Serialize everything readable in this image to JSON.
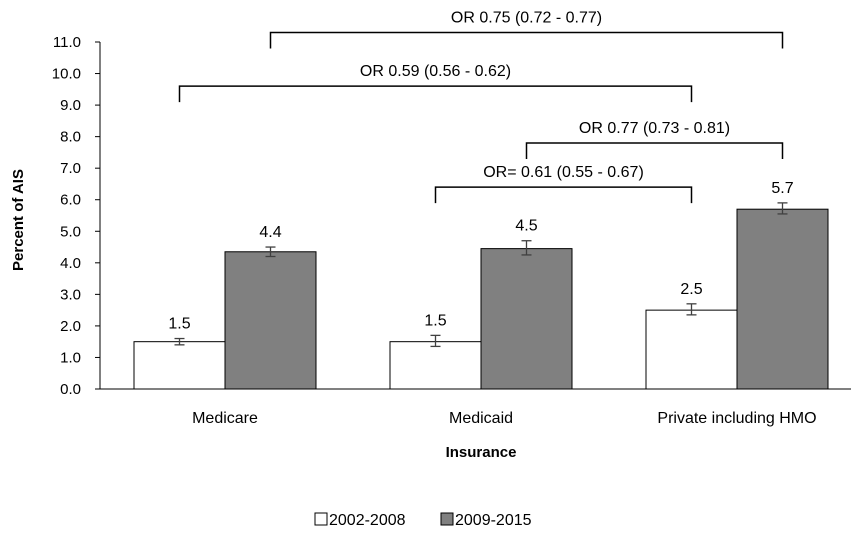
{
  "chart_data": {
    "type": "bar",
    "title": "",
    "xlabel": "Insurance",
    "ylabel": "Percent of AIS",
    "ylim": [
      0,
      11
    ],
    "ytick_step": 1,
    "ytick_labels": [
      "0.0",
      "1.0",
      "2.0",
      "3.0",
      "4.0",
      "5.0",
      "6.0",
      "7.0",
      "8.0",
      "9.0",
      "10.0",
      "11.0"
    ],
    "categories": [
      "Medicare",
      "Medicaid",
      "Private including HMO"
    ],
    "series": [
      {
        "name": "2002-2008",
        "color": "#ffffff",
        "values": [
          1.5,
          1.5,
          2.5
        ],
        "labels": [
          "1.5",
          "1.5",
          "2.5"
        ],
        "error_low": [
          1.4,
          1.35,
          2.35
        ],
        "error_high": [
          1.6,
          1.7,
          2.7
        ]
      },
      {
        "name": "2009-2015",
        "color": "#808080",
        "values": [
          4.35,
          4.45,
          5.7
        ],
        "labels": [
          "4.4",
          "4.5",
          "5.7"
        ],
        "error_low": [
          4.2,
          4.25,
          5.55
        ],
        "error_high": [
          4.5,
          4.7,
          5.9
        ]
      }
    ],
    "grid": false,
    "legend_position": "bottom",
    "comparisons": [
      {
        "text": "OR 0.75 (0.72 - 0.77)",
        "from": "2009-2015|Medicare",
        "to": "2009-2015|Private including HMO",
        "level": 11.3
      },
      {
        "text": "OR 0.59 (0.56 - 0.62)",
        "from": "2002-2008|Medicare",
        "to": "2002-2008|Private including HMO",
        "level": 9.6
      },
      {
        "text": "OR 0.77 (0.73 - 0.81)",
        "from": "2009-2015|Medicaid",
        "to": "2009-2015|Private including HMO",
        "level": 7.8
      },
      {
        "text": "OR= 0.61 (0.55 - 0.67)",
        "from": "2002-2008|Medicaid",
        "to": "2002-2008|Private including HMO",
        "level": 6.4
      }
    ]
  },
  "colors": {
    "axis": "#000000",
    "error_bar": "#404040",
    "bracket": "#000000"
  }
}
